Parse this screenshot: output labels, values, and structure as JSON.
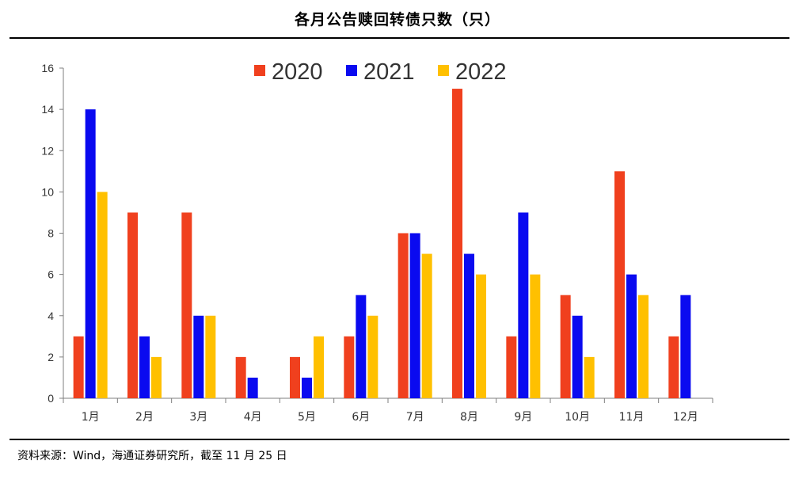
{
  "title": "各月公告赎回转债只数（只）",
  "source": "资料来源：Wind，海通证券研究所，截至 11 月 25 日",
  "colors": {
    "2020": "#F0401E",
    "2021": "#0A0AF0",
    "2022": "#FFC000"
  },
  "chart_data": {
    "type": "bar",
    "categories": [
      "1月",
      "2月",
      "3月",
      "4月",
      "5月",
      "6月",
      "7月",
      "8月",
      "9月",
      "10月",
      "11月",
      "12月"
    ],
    "series": [
      {
        "name": "2020",
        "values": [
          3,
          9,
          9,
          2,
          2,
          3,
          8,
          15,
          3,
          5,
          11,
          3
        ]
      },
      {
        "name": "2021",
        "values": [
          14,
          3,
          4,
          1,
          1,
          5,
          8,
          7,
          9,
          4,
          6,
          5
        ]
      },
      {
        "name": "2022",
        "values": [
          10,
          2,
          4,
          0,
          3,
          4,
          7,
          6,
          6,
          2,
          5,
          null
        ]
      }
    ],
    "ylim": [
      0,
      16
    ],
    "yticks": [
      0,
      2,
      4,
      6,
      8,
      10,
      12,
      14,
      16
    ],
    "legend_position": "top-center",
    "grid": false
  }
}
